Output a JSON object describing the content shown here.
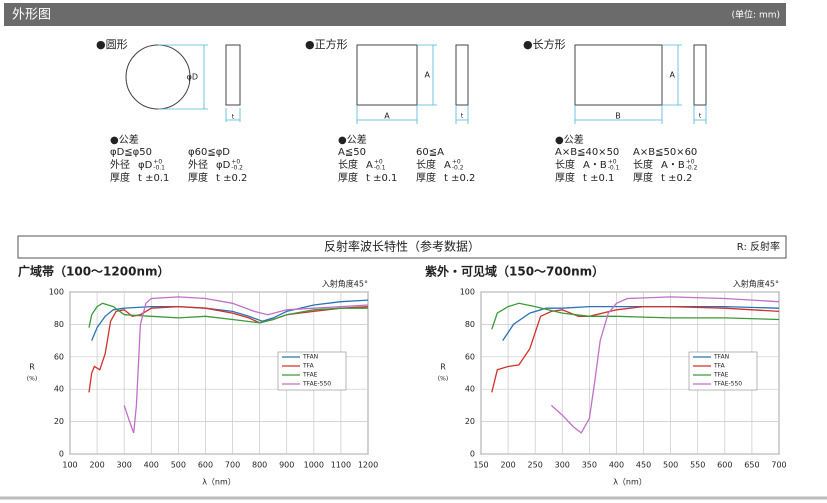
{
  "header": {
    "title": "外形图",
    "unit": "(单位: mm)"
  },
  "shapes": [
    {
      "title": "●圆形",
      "dims": [
        "φD",
        "t"
      ],
      "tolerance": {
        "title": "●公差",
        "conditions": [
          "φD≦φ50",
          "φ60≦φD"
        ],
        "rows": [
          [
            {
              "label": "外径",
              "main": "φD",
              "up": "+0",
              "down": "-0.1"
            },
            {
              "label": "外径",
              "main": "φD",
              "up": "+0",
              "down": "-0.2"
            }
          ],
          [
            {
              "label": "厚度",
              "main": "t ±0.1"
            },
            {
              "label": "厚度",
              "main": "t ±0.2"
            }
          ]
        ]
      }
    },
    {
      "title": "●正方形",
      "dims": [
        "A",
        "A",
        "t"
      ],
      "tolerance": {
        "title": "●公差",
        "conditions": [
          "A≦50",
          "60≦A"
        ],
        "rows": [
          [
            {
              "label": "长度",
              "main": "A",
              "up": "+0",
              "down": "-0.1"
            },
            {
              "label": "长度",
              "main": "A",
              "up": "+0",
              "down": "-0.2"
            }
          ],
          [
            {
              "label": "厚度",
              "main": "t ±0.1"
            },
            {
              "label": "厚度",
              "main": "t ±0.2"
            }
          ]
        ]
      }
    },
    {
      "title": "●长方形",
      "dims": [
        "A",
        "B",
        "t"
      ],
      "tolerance": {
        "title": "●公差",
        "conditions": [
          "A×B≦40×50",
          "A×B≦50×60"
        ],
        "rows": [
          [
            {
              "label": "长度",
              "main": "A・B",
              "up": "+0",
              "down": "-0.1"
            },
            {
              "label": "长度",
              "main": "A・B",
              "up": "+0",
              "down": "-0.2"
            }
          ],
          [
            {
              "label": "厚度",
              "main": "t ±0.1"
            },
            {
              "label": "厚度",
              "main": "t ±0.2"
            }
          ]
        ]
      }
    }
  ],
  "section": {
    "title": "反射率波长特性（参考数据）",
    "note": "R: 反射率"
  },
  "chart_data": [
    {
      "type": "line",
      "title": "广域帯（100〜1200nm）",
      "annotation": "入射角度45°",
      "xlabel": "λ（nm）",
      "ylabel": "R",
      "ylabel_unit": "(%)",
      "xlim": [
        100,
        1200
      ],
      "xticks": [
        100,
        200,
        300,
        400,
        500,
        600,
        700,
        800,
        900,
        1000,
        1100,
        1200
      ],
      "ylim": [
        0,
        100
      ],
      "yticks": [
        0,
        20,
        40,
        60,
        80,
        100
      ],
      "grid": true,
      "legend": "center-right",
      "series": [
        {
          "name": "TFAN",
          "color": "#2a72b8",
          "x": [
            180,
            200,
            230,
            260,
            300,
            400,
            500,
            600,
            700,
            760,
            810,
            850,
            900,
            1000,
            1100,
            1200
          ],
          "values": [
            70,
            78,
            85,
            89,
            90,
            91,
            91,
            90,
            88,
            85,
            82,
            84,
            88,
            92,
            94,
            95
          ]
        },
        {
          "name": "TFA",
          "color": "#d2302a",
          "x": [
            170,
            180,
            190,
            210,
            230,
            250,
            270,
            300,
            330,
            360,
            400,
            500,
            600,
            700,
            760,
            800,
            850,
            900,
            1000,
            1100,
            1200
          ],
          "values": [
            38,
            50,
            54,
            52,
            62,
            82,
            88,
            89,
            85,
            86,
            90,
            91,
            90,
            87,
            84,
            81,
            83,
            86,
            88,
            90,
            91
          ]
        },
        {
          "name": "TFAE",
          "color": "#3a9a3a",
          "x": [
            170,
            180,
            200,
            220,
            260,
            300,
            400,
            500,
            600,
            700,
            800,
            850,
            900,
            1000,
            1100,
            1200
          ],
          "values": [
            78,
            86,
            91,
            93,
            91,
            86,
            85,
            84,
            85,
            83,
            81,
            83,
            86,
            89,
            90,
            90
          ]
        },
        {
          "name": "TFAE-550",
          "color": "#c070c8",
          "x": [
            300,
            320,
            335,
            345,
            360,
            380,
            400,
            500,
            600,
            700,
            780,
            830,
            900,
            1000,
            1100,
            1200
          ],
          "values": [
            30,
            20,
            13,
            30,
            80,
            93,
            96,
            97,
            96,
            93,
            88,
            86,
            89,
            90,
            91,
            92
          ]
        }
      ]
    },
    {
      "type": "line",
      "title": "紫外・可见域（150〜700nm）",
      "annotation": "入射角度45°",
      "xlabel": "λ（nm）",
      "ylabel": "R",
      "ylabel_unit": "(%)",
      "xlim": [
        150,
        700
      ],
      "xticks": [
        150,
        200,
        250,
        300,
        350,
        400,
        450,
        500,
        550,
        600,
        650,
        700
      ],
      "ylim": [
        0,
        100
      ],
      "yticks": [
        0,
        20,
        40,
        60,
        80,
        100
      ],
      "grid": true,
      "legend": "center-right",
      "series": [
        {
          "name": "TFAN",
          "color": "#2a72b8",
          "x": [
            190,
            210,
            240,
            270,
            300,
            350,
            400,
            500,
            600,
            700
          ],
          "values": [
            70,
            80,
            87,
            90,
            90,
            91,
            91,
            91,
            91,
            90
          ]
        },
        {
          "name": "TFA",
          "color": "#d2302a",
          "x": [
            170,
            180,
            200,
            220,
            240,
            260,
            280,
            300,
            330,
            350,
            400,
            450,
            500,
            600,
            700
          ],
          "values": [
            38,
            52,
            54,
            55,
            65,
            85,
            88,
            89,
            85,
            85,
            89,
            91,
            91,
            90,
            88
          ]
        },
        {
          "name": "TFAE",
          "color": "#3a9a3a",
          "x": [
            170,
            180,
            200,
            220,
            250,
            300,
            350,
            400,
            500,
            600,
            700
          ],
          "values": [
            77,
            87,
            91,
            93,
            91,
            87,
            85,
            85,
            84,
            84,
            83
          ]
        },
        {
          "name": "TFAE-550",
          "color": "#c070c8",
          "x": [
            280,
            300,
            320,
            335,
            350,
            360,
            370,
            385,
            400,
            420,
            500,
            600,
            700
          ],
          "values": [
            30,
            24,
            17,
            13,
            22,
            45,
            70,
            87,
            93,
            96,
            97,
            96,
            94
          ]
        }
      ]
    }
  ]
}
